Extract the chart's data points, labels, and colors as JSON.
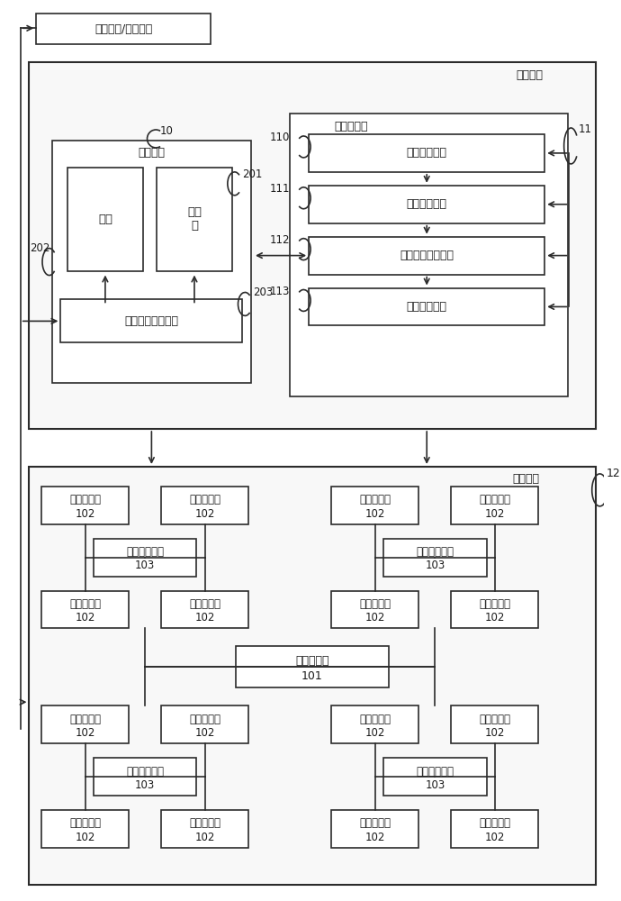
{
  "bg_color": "#ffffff",
  "title": "计算装置",
  "external_label": "外部设备/其他部件",
  "storage_unit_label": "存储单元",
  "cache_label": "缓存",
  "register_label": "寄存\n器",
  "data_io_label": "数据输入输出单元",
  "controller_label": "控制器单元",
  "inst_cache_label": "指令缓存单元",
  "inst_proc_label": "指令处理单元",
  "dep_proc_label": "依赖关系处理单元",
  "store_queue_label": "存储队列单元",
  "compute_unit_label": "运算单元",
  "main_proc_label": "主处理电路",
  "branch_proc_label": "分支处理电路",
  "slave_proc_label": "从处理电路",
  "num_10": "10",
  "num_11": "11",
  "num_12": "12",
  "num_110": "110",
  "num_111": "111",
  "num_112": "112",
  "num_113": "113",
  "num_201": "201",
  "num_202": "202",
  "num_203": "203",
  "num_101": "101",
  "num_102": "102",
  "num_103": "103"
}
